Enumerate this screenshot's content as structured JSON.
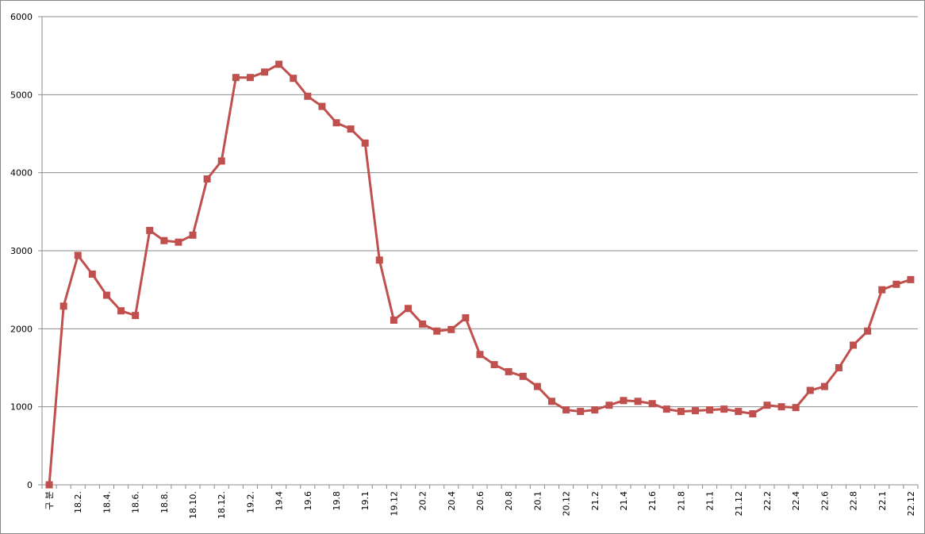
{
  "chart_data": {
    "type": "line",
    "color": "#c0504d",
    "categories": [
      "구 분",
      null,
      "18.2.",
      null,
      "18.4.",
      null,
      "18.6.",
      null,
      "18.8.",
      null,
      "18.10.",
      null,
      "18.12.",
      null,
      "19.2.",
      null,
      "19.4",
      null,
      "19.6",
      null,
      "19.8",
      null,
      "19.1",
      null,
      "19.12",
      null,
      "20.2",
      null,
      "20.4",
      null,
      "20.6",
      null,
      "20.8",
      null,
      "20.1",
      null,
      "20.12",
      null,
      "21.2",
      null,
      "21.4",
      null,
      "21.6",
      null,
      "21.8",
      null,
      "21.1",
      null,
      "21.12",
      null,
      "22.2",
      null,
      "22.4",
      null,
      "22.6",
      null,
      "22.8",
      null,
      "22.1",
      null,
      "22.12"
    ],
    "values": [
      0,
      2290,
      2940,
      2700,
      2430,
      2230,
      2170,
      3260,
      3130,
      3110,
      3200,
      3920,
      4150,
      5220,
      5220,
      5290,
      5390,
      5210,
      4980,
      4850,
      4640,
      4560,
      4380,
      2880,
      2110,
      2260,
      2060,
      1970,
      1990,
      2140,
      1670,
      1540,
      1450,
      1390,
      1260,
      1070,
      960,
      940,
      960,
      1020,
      1080,
      1070,
      1040,
      970,
      940,
      950,
      960,
      970,
      940,
      910,
      1020,
      1000,
      990,
      1210,
      1260,
      1500,
      1790,
      1970,
      2500,
      2570,
      2630
    ],
    "ylim": [
      0,
      6000
    ],
    "yticks": [
      0,
      1000,
      2000,
      3000,
      4000,
      5000,
      6000
    ],
    "grid": true
  }
}
